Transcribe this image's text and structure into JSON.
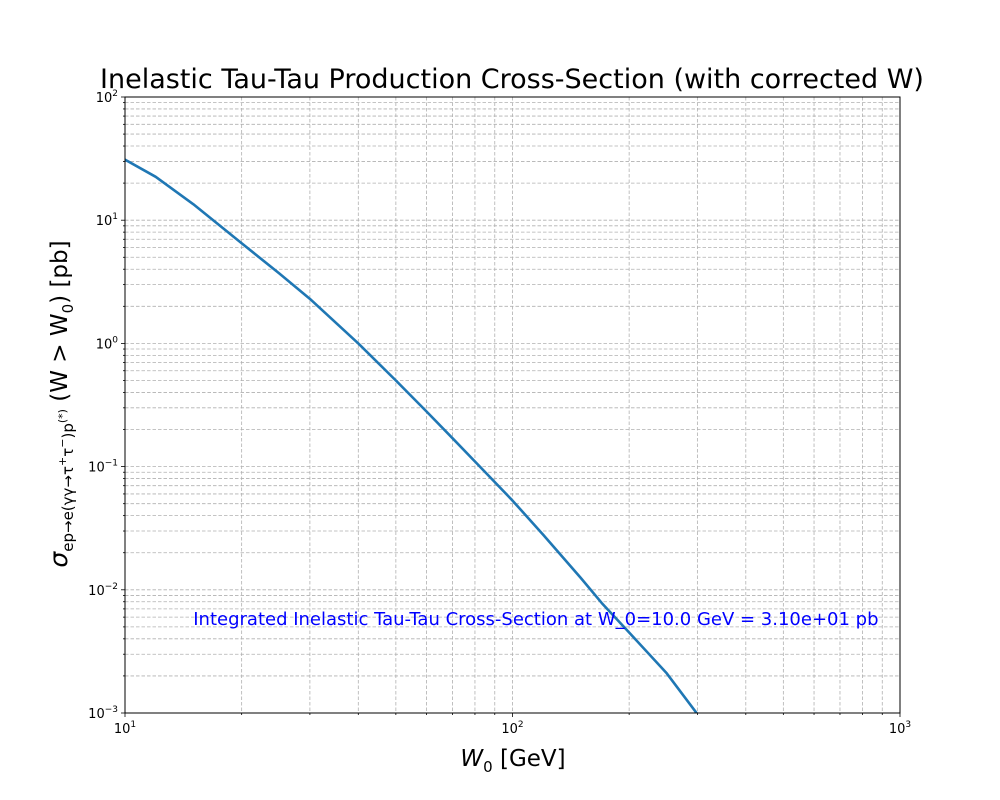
{
  "chart_data": {
    "type": "line",
    "title": "Inelastic Tau-Tau Production Cross-Section (with corrected W)",
    "xlabel": {
      "base": "W",
      "sub": "0",
      "unit": " [GeV]"
    },
    "ylabel": {
      "sigma": "σ",
      "sub": "ep→e(γγ→τ",
      "sub_sup1": "+",
      "sub_mid": "τ",
      "sub_sup2": "−",
      "sub_end": ")p",
      "sub_sup3": "(*)",
      "rest1": " (W > W",
      "rest_sub": "0",
      "rest2": ") [pb]"
    },
    "x_scale": "log",
    "y_scale": "log",
    "xlim": [
      10,
      1000
    ],
    "ylim": [
      0.001,
      100
    ],
    "x_ticks": [
      {
        "value": 10,
        "base": "10",
        "exp": "1"
      },
      {
        "value": 100,
        "base": "10",
        "exp": "2"
      },
      {
        "value": 1000,
        "base": "10",
        "exp": "3"
      }
    ],
    "y_ticks": [
      {
        "value": 0.001,
        "base": "10",
        "exp": "−3"
      },
      {
        "value": 0.01,
        "base": "10",
        "exp": "−2"
      },
      {
        "value": 0.1,
        "base": "10",
        "exp": "−1"
      },
      {
        "value": 1,
        "base": "10",
        "exp": "0"
      },
      {
        "value": 10,
        "base": "10",
        "exp": "1"
      },
      {
        "value": 100,
        "base": "10",
        "exp": "2"
      }
    ],
    "grid": "major and minor, dashed, both axes",
    "series": [
      {
        "color": "#1f77b4",
        "x": [
          10,
          12,
          15,
          20,
          25,
          30,
          40,
          50,
          60,
          70,
          80,
          100,
          120,
          150,
          170,
          200,
          250,
          300
        ],
        "y": [
          31,
          22.5,
          13.5,
          6.5,
          3.7,
          2.3,
          1.0,
          0.5,
          0.28,
          0.17,
          0.11,
          0.053,
          0.028,
          0.0125,
          0.0078,
          0.0045,
          0.0021,
          0.00098
        ]
      }
    ],
    "annotation": {
      "text": "Integrated Inelastic Tau-Tau Cross-Section at W_0=10.0 GeV = 3.10e+01 pb",
      "color": "#0000ff",
      "x": 15,
      "y": 0.0052
    }
  }
}
